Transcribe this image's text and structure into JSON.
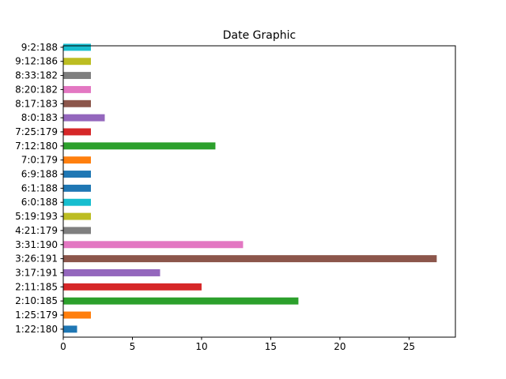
{
  "chart_data": {
    "type": "bar",
    "orientation": "horizontal",
    "title": "Date Graphic",
    "xlabel": "",
    "ylabel": "",
    "xlim": [
      0,
      28.35
    ],
    "x_ticks": [
      0,
      5,
      10,
      15,
      20,
      25
    ],
    "grid": false,
    "legend": false,
    "categories": [
      "1:22:180",
      "1:25:179",
      "2:10:185",
      "2:11:185",
      "3:17:191",
      "3:26:191",
      "3:31:190",
      "4:21:179",
      "5:19:193",
      "6:0:188",
      "6:1:188",
      "6:9:188",
      "7:0:179",
      "7:12:180",
      "7:25:179",
      "8:0:183",
      "8:17:183",
      "8:20:182",
      "8:33:182",
      "9:12:186",
      "9:2:188"
    ],
    "values": [
      1,
      2,
      17,
      10,
      7,
      27,
      13,
      2,
      2,
      2,
      2,
      2,
      2,
      11,
      2,
      3,
      2,
      2,
      2,
      2,
      2
    ],
    "colors": [
      "#1f77b4",
      "#ff7f0e",
      "#2ca02c",
      "#d62728",
      "#9467bd",
      "#8c564b",
      "#e377c2",
      "#7f7f7f",
      "#bcbd22",
      "#17becf",
      "#1f77b4",
      "#1f77b4",
      "#ff7f0e",
      "#2ca02c",
      "#d62728",
      "#9467bd",
      "#8c564b",
      "#e377c2",
      "#7f7f7f",
      "#bcbd22",
      "#17becf"
    ]
  }
}
